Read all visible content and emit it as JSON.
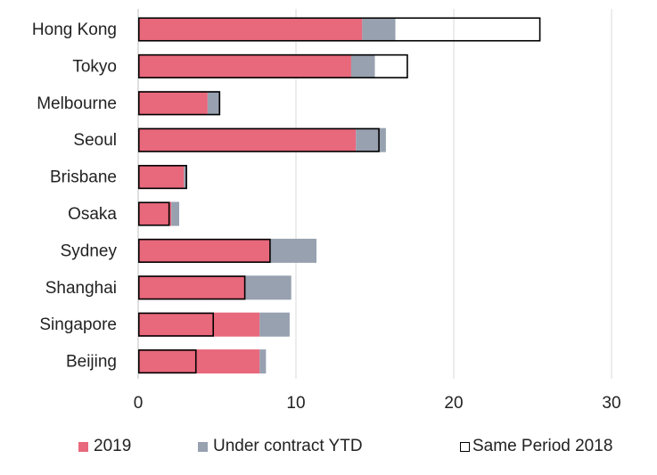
{
  "colors": {
    "s2019": "#E8687C",
    "under_contract": "#97A1B0",
    "same_period_outline": "#000000",
    "grid": "#D9D9D9",
    "axis": "#BFBFBF"
  },
  "chart_data": {
    "type": "bar",
    "orientation": "horizontal",
    "categories": [
      "Hong Kong",
      "Tokyo",
      "Melbourne",
      "Seoul",
      "Brisbane",
      "Osaka",
      "Sydney",
      "Shanghai",
      "Singapore",
      "Beijing"
    ],
    "series": [
      {
        "name": "2019",
        "values": [
          14.2,
          13.5,
          4.4,
          13.8,
          2.9,
          2.1,
          8.4,
          6.8,
          7.7,
          7.7
        ]
      },
      {
        "name": "Under contract YTD",
        "values": [
          2.1,
          1.5,
          0.8,
          1.9,
          0.2,
          0.5,
          2.9,
          2.9,
          1.9,
          0.4
        ]
      },
      {
        "name": "Same Period 2018",
        "values": [
          25.5,
          17.1,
          5.2,
          15.3,
          3.1,
          2.0,
          8.4,
          6.8,
          4.8,
          3.7
        ]
      }
    ],
    "stacked_series": [
      "2019",
      "Under contract YTD"
    ],
    "outline_series": "Same Period 2018",
    "xlim": [
      0,
      30
    ],
    "xticks": [
      "0",
      "10",
      "20",
      "30"
    ],
    "xtick_values": [
      0,
      10,
      20,
      30
    ],
    "grid": true,
    "legend_position": "bottom"
  }
}
